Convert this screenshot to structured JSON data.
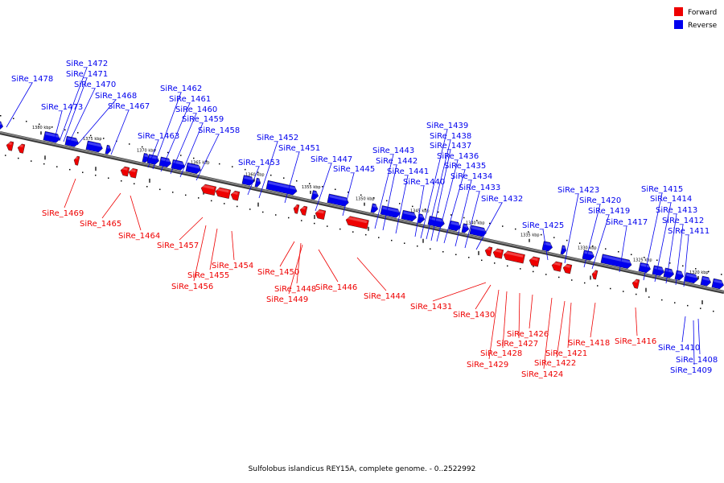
{
  "caption": "Sulfolobus islandicus REY15A, complete genome. - 0..2522992",
  "legend": [
    {
      "label": "Forward",
      "color": "#ee0000"
    },
    {
      "label": "Reverse",
      "color": "#0000ee"
    }
  ],
  "colors": {
    "forward": "#ee0000",
    "reverse": "#0000ee",
    "backbone": "#808080"
  },
  "ticks": [
    "1380 kbp",
    "1375 kbp",
    "1370 kbp",
    "1365 kbp",
    "1360 kbp",
    "1355 kbp",
    "1350 kbp",
    "1345 kbp",
    "1340 kbp",
    "1335 kbp",
    "1330 kbp",
    "1325 kbp",
    "1320 kbp"
  ],
  "genes_reverse": [
    "SiRe_1478",
    "SiRe_1473",
    "SiRe_1472",
    "SiRe_1471",
    "SiRe_1470",
    "SiRe_1468",
    "SiRe_1467",
    "SiRe_1463",
    "SiRe_1462",
    "SiRe_1461",
    "SiRe_1460",
    "SiRe_1459",
    "SiRe_1458",
    "SiRe_1453",
    "SiRe_1452",
    "SiRe_1451",
    "SiRe_1447",
    "SiRe_1445",
    "SiRe_1443",
    "SiRe_1442",
    "SiRe_1441",
    "SiRe_1440",
    "SiRe_1439",
    "SiRe_1438",
    "SiRe_1437",
    "SiRe_1436",
    "SiRe_1435",
    "SiRe_1434",
    "SiRe_1433",
    "SiRe_1432",
    "SiRe_1425",
    "SiRe_1423",
    "SiRe_1420",
    "SiRe_1419",
    "SiRe_1417",
    "SiRe_1415",
    "SiRe_1414",
    "SiRe_1413",
    "SiRe_1412",
    "SiRe_1411",
    "SiRe_1410",
    "SiRe_1408",
    "SiRe_1409"
  ],
  "genes_forward": [
    "SiRe_1469",
    "SiRe_1465",
    "SiRe_1464",
    "SiRe_1457",
    "SiRe_1456",
    "SiRe_1455",
    "SiRe_1454",
    "SiRe_1450",
    "SiRe_1448",
    "SiRe_1449",
    "SiRe_1446",
    "SiRe_1444",
    "SiRe_1431",
    "SiRe_1430",
    "SiRe_1429",
    "SiRe_1428",
    "SiRe_1427",
    "SiRe_1426",
    "SiRe_1424",
    "SiRe_1422",
    "SiRe_1421",
    "SiRe_1418",
    "SiRe_1416"
  ]
}
